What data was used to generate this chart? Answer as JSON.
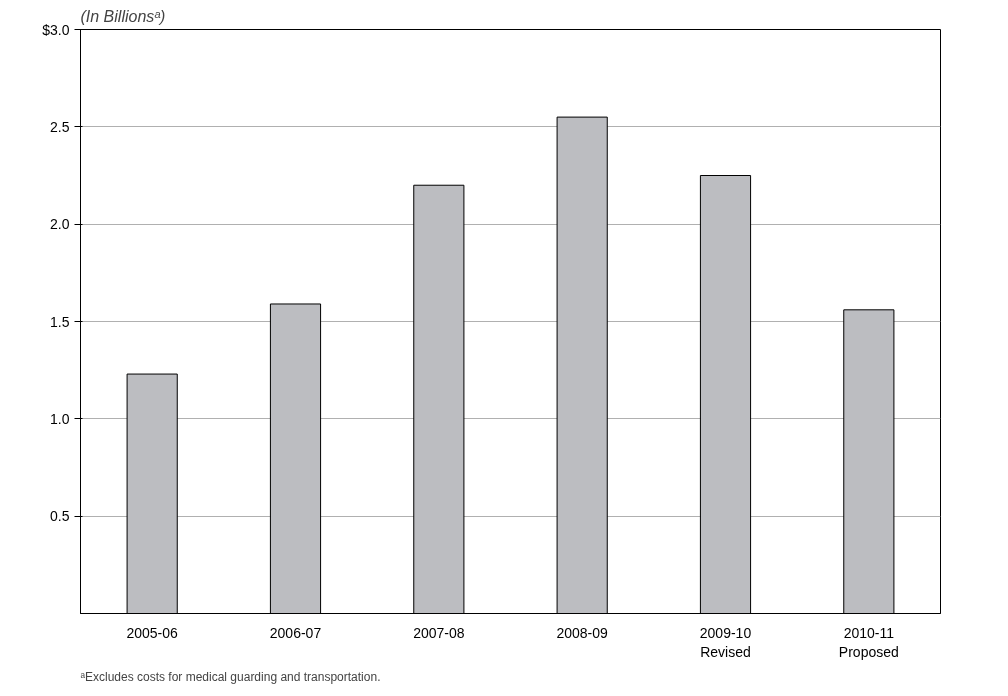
{
  "chart_data": {
    "type": "bar",
    "title": "(In Billionsᵃ)",
    "categories": [
      "2005-06",
      "2006-07",
      "2007-08",
      "2008-09",
      "2009-10\nRevised",
      "2010-11\nProposed"
    ],
    "values": [
      1.23,
      1.59,
      2.2,
      2.55,
      2.25,
      1.56
    ],
    "color": "#bcbdc1",
    "ylim": [
      0,
      3
    ],
    "yticks": [
      {
        "value": 0.5,
        "label": "0.5"
      },
      {
        "value": 1,
        "label": "1.0"
      },
      {
        "value": 1.5,
        "label": "1.5"
      },
      {
        "value": 2,
        "label": "2.0"
      },
      {
        "value": 2.5,
        "label": "2.5"
      },
      {
        "value": 3,
        "label": "$3.0"
      }
    ],
    "grid": "y",
    "annotations": [
      "ᵃExcludes costs for medical guarding and transportation."
    ]
  }
}
